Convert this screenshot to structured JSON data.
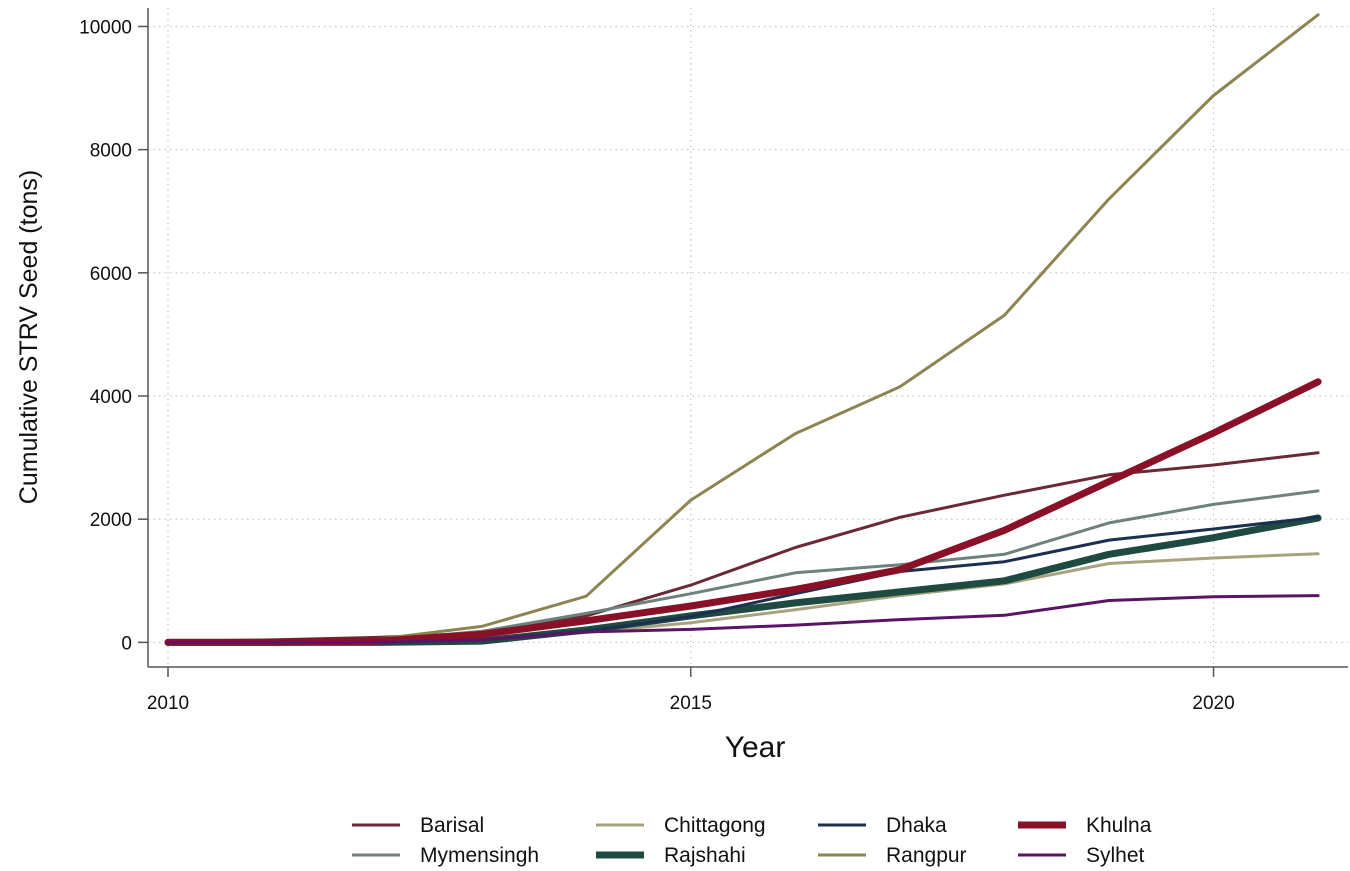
{
  "chart_data": {
    "type": "line",
    "xlabel": "Year",
    "ylabel": "Cumulative STRV Seed (tons)",
    "xlim": [
      2010,
      2021.2
    ],
    "ylim": [
      -400,
      10300
    ],
    "x_ticks": [
      2010,
      2015,
      2020
    ],
    "y_ticks": [
      0,
      2000,
      4000,
      6000,
      8000,
      10000
    ],
    "grid": true,
    "legend_position": "bottom",
    "x": [
      2010,
      2011,
      2012,
      2013,
      2014,
      2015,
      2016,
      2017,
      2018,
      2019,
      2020,
      2021
    ],
    "series": [
      {
        "name": "Barisal",
        "color": "#6b2a33",
        "width": 3,
        "values": [
          20,
          40,
          80,
          150,
          430,
          930,
          1540,
          2030,
          2390,
          2720,
          2880,
          3080
        ]
      },
      {
        "name": "Mymensingh",
        "color": "#6f817c",
        "width": 3,
        "values": [
          0,
          10,
          30,
          180,
          470,
          790,
          1130,
          1260,
          1430,
          1940,
          2240,
          2460
        ]
      },
      {
        "name": "Chittagong",
        "color": "#a8a37e",
        "width": 3,
        "values": [
          0,
          0,
          10,
          60,
          160,
          320,
          530,
          760,
          950,
          1280,
          1370,
          1440
        ]
      },
      {
        "name": "Rajshahi",
        "color": "#1f4a42",
        "width": 7,
        "values": [
          0,
          0,
          0,
          20,
          200,
          430,
          640,
          820,
          1000,
          1430,
          1700,
          2020
        ]
      },
      {
        "name": "Dhaka",
        "color": "#1b3050",
        "width": 3,
        "values": [
          0,
          0,
          10,
          40,
          180,
          420,
          790,
          1150,
          1310,
          1660,
          1840,
          2030
        ]
      },
      {
        "name": "Rangpur",
        "color": "#8d8452",
        "width": 3,
        "values": [
          0,
          0,
          50,
          260,
          750,
          2310,
          3390,
          4150,
          5310,
          7200,
          8880,
          10190
        ]
      },
      {
        "name": "Khulna",
        "color": "#8a1028",
        "width": 7,
        "values": [
          0,
          0,
          20,
          130,
          350,
          590,
          860,
          1180,
          1820,
          2610,
          3400,
          4230
        ]
      },
      {
        "name": "Sylhet",
        "color": "#5a1466",
        "width": 3,
        "values": [
          0,
          0,
          0,
          40,
          170,
          210,
          280,
          370,
          440,
          680,
          740,
          760
        ]
      }
    ],
    "legend_order": [
      "Barisal",
      "Chittagong",
      "Dhaka",
      "Khulna",
      "Mymensingh",
      "Rajshahi",
      "Rangpur",
      "Sylhet"
    ]
  }
}
